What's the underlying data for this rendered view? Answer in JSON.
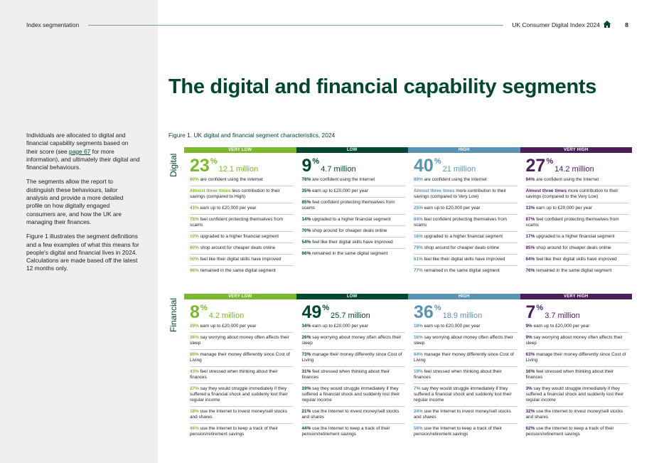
{
  "header": {
    "section": "Index segmentation",
    "report": "UK Consumer Digital Index 2024",
    "page": "8"
  },
  "title": "The digital and financial capability segments",
  "intro": {
    "p1_before": "Individuals are allocated to digital and financial capability segments based on their score (see ",
    "p1_link": "page 67",
    "p1_after": " for more information), and ultimately their digital and financial behaviours.",
    "p2": "The segments allow the report to distinguish these behaviours, tailor analysis and provide a more detailed profile on how digitally engaged consumers are, and how the UK are managing their finances.",
    "p3": "Figure 1 illustrates the segment definitions and a few examples of what this means for people's digital and financial lives in 2024. Calculations are made based off the latest 12 months only."
  },
  "figure": {
    "label": "Figure 1.",
    "caption": "UK digital and financial segment characteristics, 2024"
  },
  "colors": {
    "very_low": "#7ab929",
    "low": "#024731",
    "high": "#5a93b3",
    "very_high": "#4a1f5b"
  },
  "digital": {
    "label": "Digital",
    "columns": [
      {
        "head": "VERY LOW",
        "pct": "23",
        "sup": "%",
        "mil": "12.1 million",
        "stats": [
          {
            "b": "60%",
            "t": " are confident using the Internet"
          },
          {
            "b": "Almost three times",
            "t": " less contribution to their savings (compared to High)"
          },
          {
            "b": "41%",
            "t": " earn up to £20,000 per year"
          },
          {
            "b": "75%",
            "t": " feel confident protecting themselves from scams"
          },
          {
            "b": "10%",
            "t": " upgraded to a higher financial segment"
          },
          {
            "b": "60%",
            "t": " shop around for cheaper deals online"
          },
          {
            "b": "50%",
            "t": " feel like their digital skills have improved"
          },
          {
            "b": "96%",
            "t": " remained in the same digital segment"
          }
        ]
      },
      {
        "head": "LOW",
        "pct": "9",
        "sup": "%",
        "mil": "4.7 million",
        "stats": [
          {
            "b": "78%",
            "t": " are confident using the Internet"
          },
          {
            "b": "35%",
            "t": " earn up to £20,000 per year"
          },
          {
            "b": "85%",
            "t": " feel confident protecting themselves from scams"
          },
          {
            "b": "14%",
            "t": " upgraded to a higher financial segment"
          },
          {
            "b": "70%",
            "t": " shop around for cheaper deals online"
          },
          {
            "b": "54%",
            "t": " feel like their digital skills have improved"
          },
          {
            "b": "66%",
            "t": " remained in the same digital segment"
          }
        ]
      },
      {
        "head": "HIGH",
        "pct": "40",
        "sup": "%",
        "mil": "21 million",
        "stats": [
          {
            "b": "89%",
            "t": " are confident using the Internet"
          },
          {
            "b": "Almost three times",
            "t": " more contribution to their savings (compared to Very Low)"
          },
          {
            "b": "25%",
            "t": " earn up to £20,000 per year"
          },
          {
            "b": "84%",
            "t": " feel confident protecting themselves from scams"
          },
          {
            "b": "16%",
            "t": " upgraded to a higher financial segment"
          },
          {
            "b": "79%",
            "t": " shop around for cheaper deals online"
          },
          {
            "b": "61%",
            "t": " feel like their digital skills have improved"
          },
          {
            "b": "77%",
            "t": " remained in the same digital segment"
          }
        ]
      },
      {
        "head": "VERY HIGH",
        "pct": "27",
        "sup": "%",
        "mil": "14.2 million",
        "stats": [
          {
            "b": "94%",
            "t": " are confident using the Internet"
          },
          {
            "b": "Almost three times",
            "t": " more contribution to their savings (compared to the Very Low)"
          },
          {
            "b": "13%",
            "t": " earn up to £20,000 per year"
          },
          {
            "b": "87%",
            "t": " feel confident protecting themselves from scams"
          },
          {
            "b": "17%",
            "t": " upgraded to a higher financial segment"
          },
          {
            "b": "85%",
            "t": " shop around for cheaper deals online"
          },
          {
            "b": "64%",
            "t": " feel like their digital skills have improved"
          },
          {
            "b": "76%",
            "t": " remained in the same digital segment"
          }
        ]
      }
    ]
  },
  "financial": {
    "label": "Financial",
    "columns": [
      {
        "head": "VERY LOW",
        "pct": "8",
        "sup": "%",
        "mil": "4.2 million",
        "stats": [
          {
            "b": "29%",
            "t": " earn up to £20,000 per year"
          },
          {
            "b": "36%",
            "t": " say worrying about money often affects their sleep"
          },
          {
            "b": "80%",
            "t": " manage their money differently since Cost of Living"
          },
          {
            "b": "43%",
            "t": " feel stressed when thinking about their finances"
          },
          {
            "b": "27%",
            "t": " say they would struggle immediately if they suffered a financial shock and suddenly lost their regular income"
          },
          {
            "b": "18%",
            "t": " use the Internet to invest money/sell stocks and shares"
          },
          {
            "b": "46%",
            "t": " use the Internet to keep a track of their pension/retirement savings"
          }
        ]
      },
      {
        "head": "LOW",
        "pct": "49",
        "sup": "%",
        "mil": "25.7 million",
        "stats": [
          {
            "b": "34%",
            "t": " earn up to £20,000 per year"
          },
          {
            "b": "26%",
            "t": " say worrying about money often affects their sleep"
          },
          {
            "b": "73%",
            "t": " manage their money differently since Cost of Living"
          },
          {
            "b": "31%",
            "t": " feel stressed when thinking about their finances"
          },
          {
            "b": "19%",
            "t": " say they would struggle immediately if they suffered a financial shock and suddenly lost their regular income"
          },
          {
            "b": "21%",
            "t": " use the Internet to invest money/sell stocks and shares"
          },
          {
            "b": "44%",
            "t": " use the Internet to keep a track of their pension/retirement savings"
          }
        ]
      },
      {
        "head": "HIGH",
        "pct": "36",
        "sup": "%",
        "mil": "18.9 million",
        "stats": [
          {
            "b": "18%",
            "t": " earn up to £20,000 per year"
          },
          {
            "b": "16%",
            "t": " say worrying about money often affects their sleep"
          },
          {
            "b": "64%",
            "t": " manage their money differently since Cost of Living"
          },
          {
            "b": "19%",
            "t": " feel stressed when thinking about their finances"
          },
          {
            "b": "7%",
            "t": " say they would struggle immediately if they suffered a financial shock and suddenly lost their regular income"
          },
          {
            "b": "24%",
            "t": " use the Internet to invest money/sell stocks and shares"
          },
          {
            "b": "56%",
            "t": " use the Internet to keep a track of their pension/retirement savings"
          }
        ]
      },
      {
        "head": "VERY HIGH",
        "pct": "7",
        "sup": "%",
        "mil": "3.7 million",
        "stats": [
          {
            "b": "9%",
            "t": " earn up to £20,000 per year"
          },
          {
            "b": "9%",
            "t": " say worrying about money often affects their sleep"
          },
          {
            "b": "63%",
            "t": " manage their money differently since Cost of Living"
          },
          {
            "b": "16%",
            "t": " feel stressed when thinking about their finances"
          },
          {
            "b": "3%",
            "t": " say they would struggle immediately if they suffered a financial shock and suddenly lost their regular income"
          },
          {
            "b": "32%",
            "t": " use the Internet to invest money/sell stocks and shares"
          },
          {
            "b": "62%",
            "t": " use the Internet to keep a track of their pension/retirement savings"
          }
        ]
      }
    ]
  }
}
